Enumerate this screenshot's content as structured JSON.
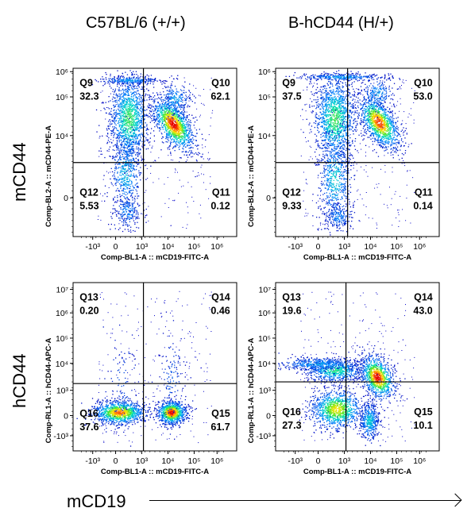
{
  "column_titles": [
    "C57BL/6 (+/+)",
    "B-hCD44 (H/+)"
  ],
  "row_titles": [
    "mCD44",
    "hCD44"
  ],
  "bottom_label": "mCD19",
  "chart_data": [
    {
      "type": "scatter",
      "position": "top-left",
      "xlabel": "Comp-BL1-A :: mCD19-FITC-A",
      "ylabel": "Comp-BL2-A :: mCD44-PE-A",
      "x_ticks": [
        "-10³",
        "0",
        "10³",
        "10⁴",
        "10⁵",
        "10⁶"
      ],
      "y_ticks": [
        "10⁶",
        "10⁵",
        "10⁴",
        "0"
      ],
      "quadrants": [
        {
          "name": "Q9",
          "value": "32.3"
        },
        {
          "name": "Q10",
          "value": "62.1"
        },
        {
          "name": "Q12",
          "value": "5.53"
        },
        {
          "name": "Q11",
          "value": "0.12"
        }
      ]
    },
    {
      "type": "scatter",
      "position": "top-right",
      "xlabel": "Comp-BL1-A :: mCD19-FITC-A",
      "ylabel": "Comp-BL2-A :: mCD44-PE-A",
      "x_ticks": [
        "-10³",
        "0",
        "10³",
        "10⁴",
        "10⁵",
        "10⁶"
      ],
      "y_ticks": [
        "10⁶",
        "10⁵",
        "10⁴",
        "0"
      ],
      "quadrants": [
        {
          "name": "Q9",
          "value": "37.5"
        },
        {
          "name": "Q10",
          "value": "53.0"
        },
        {
          "name": "Q12",
          "value": "9.33"
        },
        {
          "name": "Q11",
          "value": "0.14"
        }
      ]
    },
    {
      "type": "scatter",
      "position": "bottom-left",
      "xlabel": "Comp-BL1-A :: mCD19-FITC-A",
      "ylabel": "Comp-RL1-A :: hCD44-APC-A",
      "x_ticks": [
        "-10³",
        "0",
        "10³",
        "10⁴",
        "10⁵",
        "10⁶"
      ],
      "y_ticks": [
        "10⁷",
        "10⁶",
        "10⁵",
        "10⁴",
        "10³",
        "0",
        "-10³"
      ],
      "quadrants": [
        {
          "name": "Q13",
          "value": "0.20"
        },
        {
          "name": "Q14",
          "value": "0.46"
        },
        {
          "name": "Q16",
          "value": "37.6"
        },
        {
          "name": "Q15",
          "value": "61.7"
        }
      ]
    },
    {
      "type": "scatter",
      "position": "bottom-right",
      "xlabel": "Comp-BL1-A :: mCD19-FITC-A",
      "ylabel": "Comp-RL1-A :: hCD44-APC-A",
      "x_ticks": [
        "-10³",
        "0",
        "10³",
        "10⁴",
        "10⁵",
        "10⁶"
      ],
      "y_ticks": [
        "10⁷",
        "10⁶",
        "10⁵",
        "10⁴",
        "10³",
        "0",
        "-10³"
      ],
      "quadrants": [
        {
          "name": "Q13",
          "value": "19.6"
        },
        {
          "name": "Q14",
          "value": "43.0"
        },
        {
          "name": "Q16",
          "value": "27.3"
        },
        {
          "name": "Q15",
          "value": "10.1"
        }
      ]
    }
  ]
}
